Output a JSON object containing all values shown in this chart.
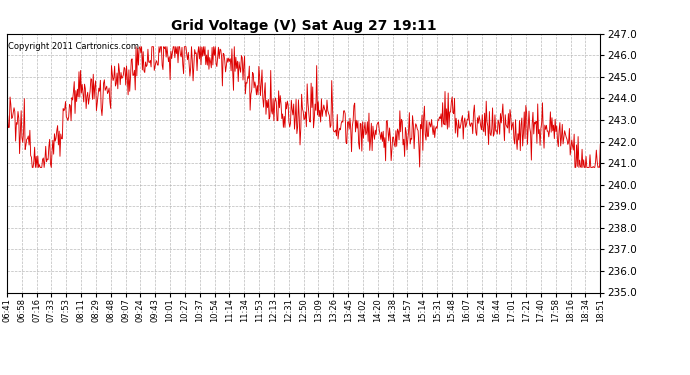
{
  "title": "Grid Voltage (V) Sat Aug 27 19:11",
  "copyright": "Copyright 2011 Cartronics.com",
  "line_color": "#dd0000",
  "bg_color": "#ffffff",
  "plot_bg_color": "#ffffff",
  "grid_color": "#aaaaaa",
  "ylim": [
    235.0,
    247.0
  ],
  "yticks": [
    235.0,
    236.0,
    237.0,
    238.0,
    239.0,
    240.0,
    241.0,
    242.0,
    243.0,
    244.0,
    245.0,
    246.0,
    247.0
  ],
  "xtick_labels": [
    "06:41",
    "06:58",
    "07:16",
    "07:33",
    "07:53",
    "08:11",
    "08:29",
    "08:48",
    "09:07",
    "09:24",
    "09:43",
    "10:01",
    "10:27",
    "10:37",
    "10:54",
    "11:14",
    "11:34",
    "11:53",
    "12:13",
    "12:31",
    "12:50",
    "13:09",
    "13:26",
    "13:45",
    "14:02",
    "14:20",
    "14:38",
    "14:57",
    "15:14",
    "15:31",
    "15:48",
    "16:07",
    "16:24",
    "16:44",
    "17:01",
    "17:21",
    "17:40",
    "17:58",
    "18:16",
    "18:34",
    "18:51"
  ],
  "seed": 12345,
  "n_points": 750
}
